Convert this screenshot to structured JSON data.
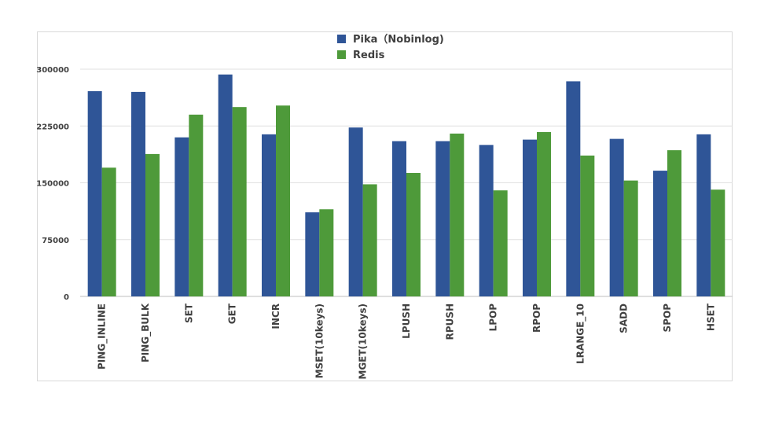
{
  "chart_data": {
    "type": "bar",
    "title": "",
    "xlabel": "",
    "ylabel": "",
    "ylim": [
      0,
      300000
    ],
    "yticks": [
      "0",
      "75000",
      "150000",
      "225000",
      "300000"
    ],
    "ytick_values": [
      0,
      75000,
      150000,
      225000,
      300000
    ],
    "grid": "horizontal",
    "legend_position": "top-center",
    "categories": [
      "PING_INLINE",
      "PING_BULK",
      "SET",
      "GET",
      "INCR",
      "MSET(10keys)",
      "MGET(10keys)",
      "LPUSH",
      "RPUSH",
      "LPOP",
      "RPOP",
      "LRANGE_10",
      "SADD",
      "SPOP",
      "HSET"
    ],
    "series": [
      {
        "name": "Pika（Nobinlog)",
        "color": "#2f5597",
        "values": [
          271000,
          270000,
          210000,
          293000,
          214000,
          111000,
          223000,
          205000,
          205000,
          200000,
          207000,
          284000,
          208000,
          166000,
          214000
        ]
      },
      {
        "name": "Redis",
        "color": "#4e9a3a",
        "values": [
          170000,
          188000,
          240000,
          250000,
          252000,
          115000,
          148000,
          163000,
          215000,
          140000,
          217000,
          186000,
          153000,
          193000,
          141000
        ]
      }
    ]
  }
}
